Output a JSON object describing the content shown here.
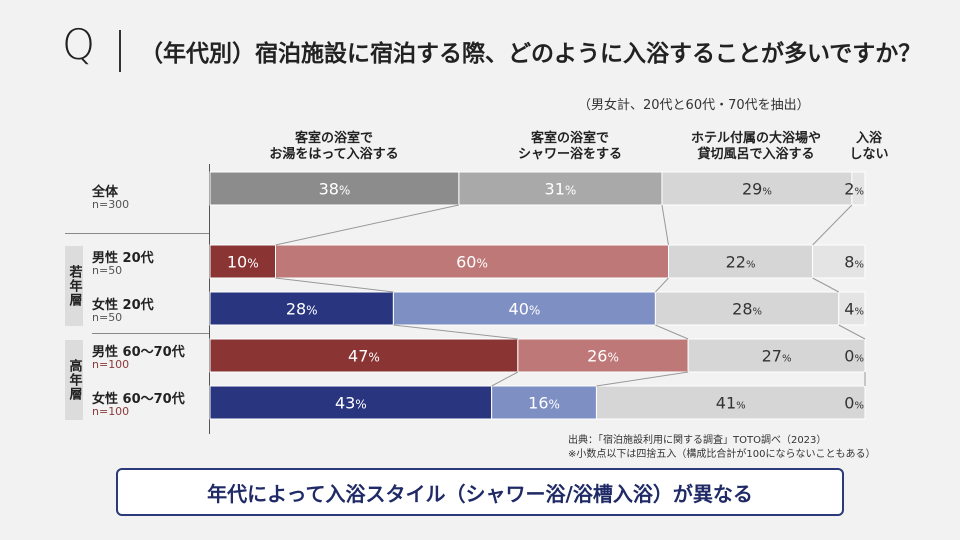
{
  "question": {
    "mark": "Q",
    "text": "（年代別）宿泊施設に宿泊する際、どのように入浴することが多いですか？",
    "subtitle": "（男女計、20代と60代・70代を抽出）"
  },
  "columns": [
    [
      "客室の浴室で",
      "お湯をはって入浴する"
    ],
    [
      "客室の浴室で",
      "シャワー浴をする"
    ],
    [
      "ホテル付属の大浴場や",
      "貸切風呂で入浴する"
    ],
    [
      "入浴",
      "しない"
    ]
  ],
  "groups": {
    "young": "若年層",
    "old": "高年層"
  },
  "rows": [
    {
      "label": "全体",
      "n": "n=300"
    },
    {
      "label": "男性 20代",
      "n": "n=50"
    },
    {
      "label": "女性 20代",
      "n": "n=50"
    },
    {
      "label": "男性 60〜70代",
      "n": "n=100"
    },
    {
      "label": "女性 60〜70代",
      "n": "n=100"
    }
  ],
  "source": {
    "line1": "出典：「宿泊施設利用に関する調査」TOTO調べ（2023）",
    "line2": "※小数点以下は四捨五入（構成比合計が100にならないこともある）"
  },
  "banner": "年代によって入浴スタイル（シャワー浴/浴槽入浴）が異なる",
  "chart_data": {
    "type": "bar",
    "orientation": "horizontal-stacked-100",
    "categories": [
      "全体",
      "男性 20代",
      "女性 20代",
      "男性 60〜70代",
      "女性 60〜70代"
    ],
    "series": [
      {
        "name": "客室の浴室で お湯をはって入浴する",
        "values": [
          38,
          10,
          28,
          47,
          43
        ]
      },
      {
        "name": "客室の浴室で シャワー浴をする",
        "values": [
          31,
          60,
          40,
          26,
          16
        ]
      },
      {
        "name": "ホテル付属の大浴場や 貸切風呂で入浴する",
        "values": [
          29,
          22,
          28,
          27,
          41
        ]
      },
      {
        "name": "入浴 しない",
        "values": [
          2,
          8,
          4,
          0,
          0
        ]
      }
    ],
    "unit": "%",
    "xlim": [
      0,
      100
    ],
    "colors": {
      "overall": [
        "#8c8c8c",
        "#a9a9a9",
        "#d6d6d6",
        "#e4e4e4"
      ],
      "male": [
        "#8b3434",
        "#bf7878",
        "#d6d6d6",
        "#e4e4e4"
      ],
      "female": [
        "#2a3580",
        "#7e8fc4",
        "#d6d6d6",
        "#e4e4e4"
      ]
    },
    "row_palette": [
      "overall",
      "male",
      "female",
      "male",
      "female"
    ]
  }
}
